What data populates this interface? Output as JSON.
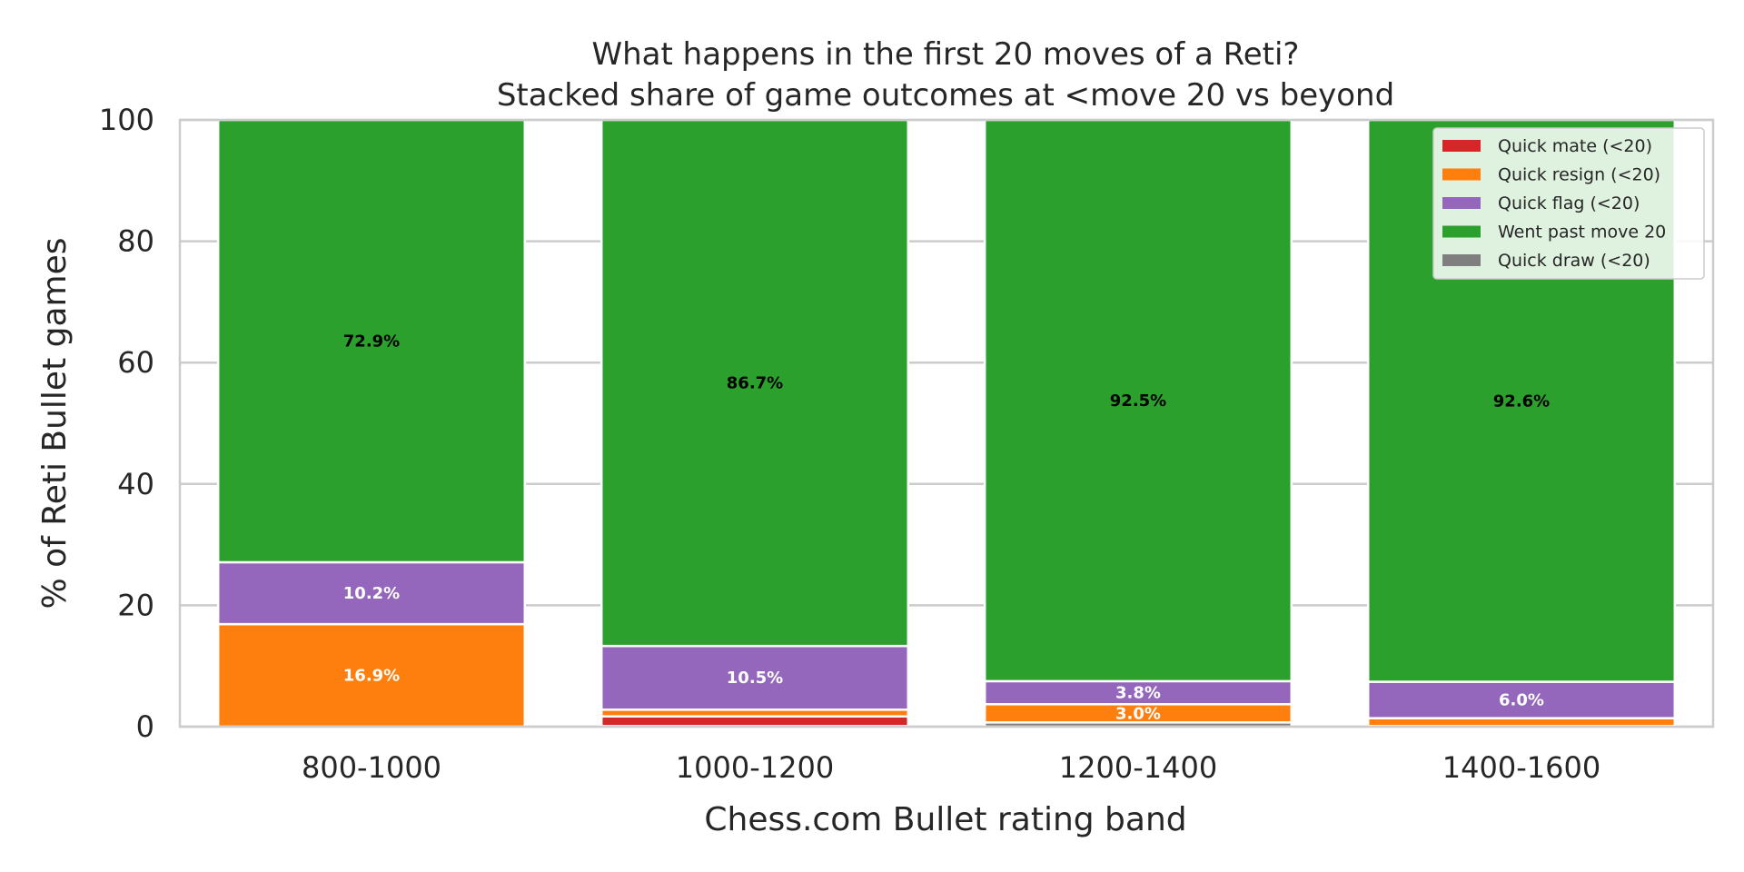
{
  "chart_data": {
    "type": "bar",
    "stacked": true,
    "title": "What happens in the first 20 moves of a Reti?",
    "subtitle": "Stacked share of game outcomes at <move 20 vs beyond",
    "xlabel": "Chess.com Bullet rating band",
    "ylabel": "% of Reti Bullet games",
    "ylim": [
      0,
      100
    ],
    "yticks": [
      0,
      20,
      40,
      60,
      80,
      100
    ],
    "grid": "horizontal",
    "legend_position": "top-right",
    "categories": [
      "800-1000",
      "1000-1200",
      "1200-1400",
      "1400-1600"
    ],
    "series": [
      {
        "name": "Quick draw (<20)",
        "color": "#7f7f7f",
        "values": [
          0.0,
          0.1,
          0.7,
          0.1
        ]
      },
      {
        "name": "Quick mate (<20)",
        "color": "#d62728",
        "values": [
          0.0,
          1.6,
          0.0,
          0.0
        ]
      },
      {
        "name": "Quick resign (<20)",
        "color": "#ff7f0e",
        "values": [
          16.9,
          1.1,
          3.0,
          1.3
        ]
      },
      {
        "name": "Quick flag (<20)",
        "color": "#9467bd",
        "values": [
          10.2,
          10.5,
          3.8,
          6.0
        ]
      },
      {
        "name": "Went past move 20",
        "color": "#2ca02c",
        "values": [
          72.9,
          86.7,
          92.5,
          92.6
        ]
      }
    ],
    "legend_order": [
      "Quick mate (<20)",
      "Quick resign (<20)",
      "Quick flag (<20)",
      "Went past move 20",
      "Quick draw (<20)"
    ],
    "data_labels": [
      {
        "category": "800-1000",
        "series": "Quick resign (<20)",
        "text": "16.9%",
        "color": "#ffffff"
      },
      {
        "category": "800-1000",
        "series": "Quick flag (<20)",
        "text": "10.2%",
        "color": "#ffffff"
      },
      {
        "category": "800-1000",
        "series": "Went past move 20",
        "text": "72.9%",
        "color": "#000000"
      },
      {
        "category": "1000-1200",
        "series": "Quick flag (<20)",
        "text": "10.5%",
        "color": "#ffffff"
      },
      {
        "category": "1000-1200",
        "series": "Went past move 20",
        "text": "86.7%",
        "color": "#000000"
      },
      {
        "category": "1200-1400",
        "series": "Quick resign (<20)",
        "text": "3.0%",
        "color": "#ffffff"
      },
      {
        "category": "1200-1400",
        "series": "Quick flag (<20)",
        "text": "3.8%",
        "color": "#ffffff"
      },
      {
        "category": "1200-1400",
        "series": "Went past move 20",
        "text": "92.5%",
        "color": "#000000"
      },
      {
        "category": "1400-1600",
        "series": "Quick flag (<20)",
        "text": "6.0%",
        "color": "#ffffff"
      },
      {
        "category": "1400-1600",
        "series": "Went past move 20",
        "text": "92.6%",
        "color": "#000000"
      }
    ]
  }
}
